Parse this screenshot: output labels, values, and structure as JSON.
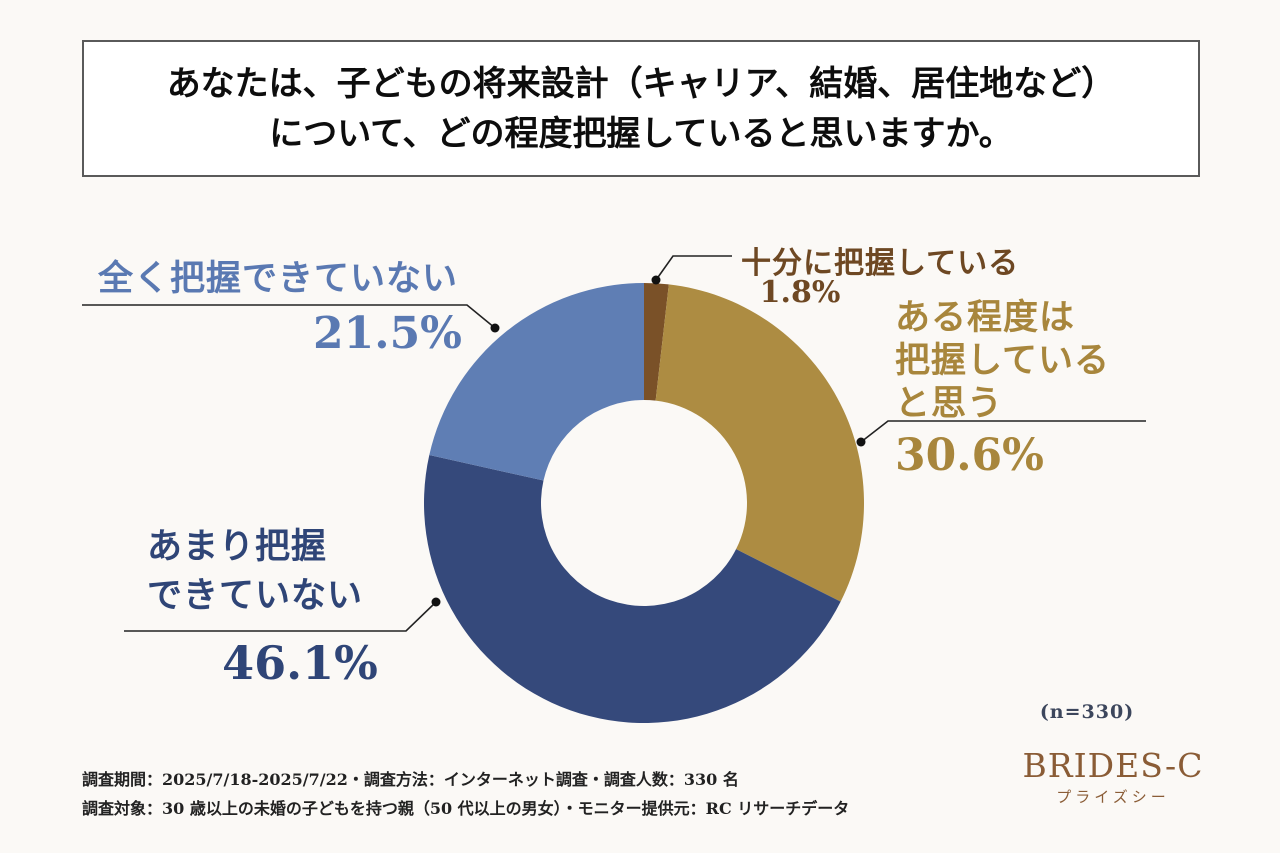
{
  "title": {
    "line1": "あなたは、子どもの将来設計（キャリア、結婚、居住地など）",
    "line2": "について、どの程度把握していると思いますか。"
  },
  "chart_data": {
    "type": "pie",
    "subtype": "donut",
    "title": "あなたは、子どもの将来設計（キャリア、結婚、居住地など）について、どの程度把握していると思いますか。",
    "unit": "%",
    "start_angle_deg": 0,
    "direction": "clockwise",
    "segments": [
      {
        "id": "sufficient",
        "label": "十分に把握している",
        "value": 1.8,
        "color": "#7a5128",
        "text_color": "#6e4823"
      },
      {
        "id": "somewhat",
        "label": "ある程度は把握していると思う",
        "value": 30.6,
        "color": "#ad8c42",
        "text_color": "#a8863c"
      },
      {
        "id": "not_much",
        "label": "あまり把握できていない",
        "value": 46.1,
        "color": "#35497b",
        "text_color": "#2f4577"
      },
      {
        "id": "not_at_all",
        "label": "全く把握できていない",
        "value": 21.5,
        "color": "#5f7eb4",
        "text_color": "#5a79b2"
      }
    ],
    "sample_note": "(n=330)",
    "legend_position": "callout-labels"
  },
  "callouts": {
    "sufficient": {
      "lines": [
        "十分に把握している"
      ],
      "percent": "1.8%"
    },
    "somewhat": {
      "lines": [
        "ある程度は",
        "把握している",
        "と思う"
      ],
      "percent": "30.6%"
    },
    "not_much": {
      "lines": [
        "あまり把握",
        "できていない"
      ],
      "percent": "46.1%"
    },
    "not_at_all": {
      "lines": [
        "全く把握できていない"
      ],
      "percent": "21.5%"
    }
  },
  "footer": {
    "line1": "調査期間：2025/7/18-2025/7/22・調査方法：インターネット調査・調査人数：330 名",
    "line2": "調査対象：30 歳以上の未婚の子どもを持つ親（50 代以上の男女）・モニター提供元：RC リサーチデータ"
  },
  "branding": {
    "logo": "BRIDES-C",
    "logo_sub": "プライズシー"
  }
}
